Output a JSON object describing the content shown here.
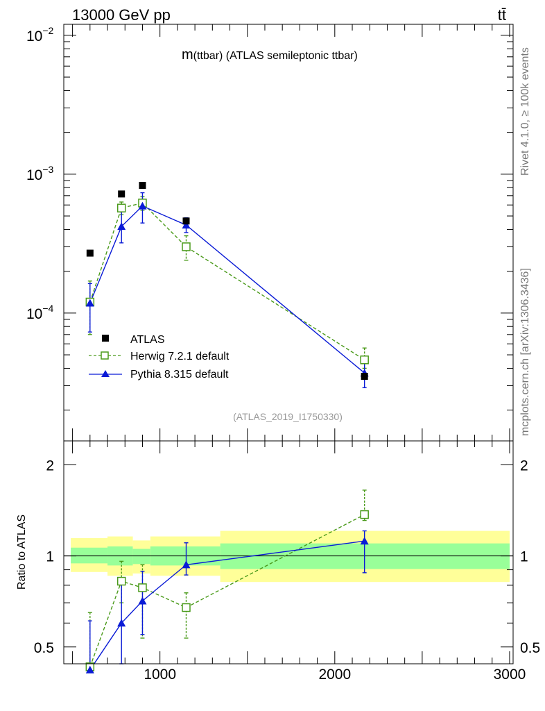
{
  "header": {
    "energy_label": "13000 GeV pp",
    "process_label": "tt̄"
  },
  "side_labels": {
    "rivet": "Rivet 4.1.0, ≥ 100k events",
    "mcplots": "mcplots.cern.ch [arXiv:1306.3436]"
  },
  "chart_data": {
    "type": "scatter",
    "title_main": "m",
    "title_rest": "(ttbar) (ATLAS semileptonic ttbar)",
    "reference": "(ATLAS_2019_I1750330)",
    "ratio_ylabel": "Ratio to ATLAS",
    "xlim": [
      450,
      3020
    ],
    "upper_ylim": [
      1.2e-05,
      0.012
    ],
    "ratio_ylim": [
      0.44,
      2.4
    ],
    "upper_ytick_labels": [
      {
        "value": 0.0001,
        "base": "10",
        "exp": "−4"
      },
      {
        "value": 0.001,
        "base": "10",
        "exp": "−3"
      },
      {
        "value": 0.01,
        "base": "10",
        "exp": "−2"
      }
    ],
    "x_ticks": [
      {
        "value": 1000,
        "label": "1000"
      },
      {
        "value": 2000,
        "label": "2000"
      },
      {
        "value": 3000,
        "label": "3000"
      }
    ],
    "ratio_ytick_labels": [
      {
        "value": 0.5,
        "label": "0.5"
      },
      {
        "value": 1,
        "label": "1"
      },
      {
        "value": 2,
        "label": "2"
      }
    ],
    "bins": [
      {
        "lo": 490,
        "hi": 700,
        "yellow": [
          0.885,
          1.145
        ],
        "green": [
          0.945,
          1.065
        ]
      },
      {
        "lo": 700,
        "hi": 845,
        "yellow": [
          0.86,
          1.16
        ],
        "green": [
          0.93,
          1.075
        ]
      },
      {
        "lo": 845,
        "hi": 945,
        "yellow": [
          0.875,
          1.125
        ],
        "green": [
          0.94,
          1.055
        ]
      },
      {
        "lo": 945,
        "hi": 1345,
        "yellow": [
          0.86,
          1.16
        ],
        "green": [
          0.93,
          1.075
        ]
      },
      {
        "lo": 1345,
        "hi": 3000,
        "yellow": [
          0.82,
          1.21
        ],
        "green": [
          0.905,
          1.1
        ]
      }
    ],
    "series": [
      {
        "name": "ATLAS",
        "legend": "ATLAS",
        "color": "#000000",
        "marker": "square-filled",
        "x": [
          600,
          780,
          900,
          1150,
          2170
        ],
        "y": [
          0.00027,
          0.00072,
          0.00083,
          0.00046,
          3.5e-05
        ]
      },
      {
        "name": "Herwig",
        "legend": "Herwig 7.2.1 default",
        "color": "#4a9a1a",
        "marker": "square-open",
        "dashed": true,
        "x": [
          600,
          780,
          900,
          1150,
          2170
        ],
        "y": [
          0.00012,
          0.00057,
          0.00062,
          0.0003,
          4.6e-05
        ],
        "yerr_lo": [
          5e-05,
          6e-05,
          7e-05,
          6e-05,
          6e-06
        ],
        "yerr_hi": [
          5e-05,
          6e-05,
          7e-05,
          6e-05,
          1e-05
        ],
        "ratio": [
          0.43,
          0.825,
          0.785,
          0.675,
          1.37
        ],
        "ratio_err_lo": [
          0.22,
          0.125,
          0.25,
          0.14,
          0.06
        ],
        "ratio_err_hi": [
          0.22,
          0.135,
          0.15,
          0.08,
          0.28
        ]
      },
      {
        "name": "Pythia",
        "legend": "Pythia 8.315 default",
        "color": "#0a1bd6",
        "marker": "triangle-filled",
        "dashed": false,
        "x": [
          600,
          780,
          900,
          1150,
          2170
        ],
        "y": [
          0.000118,
          0.00042,
          0.00059,
          0.00043,
          3.7e-05
        ],
        "yerr_lo": [
          4.5e-05,
          0.0001,
          0.000145,
          5e-05,
          8e-06
        ],
        "yerr_hi": [
          4.5e-05,
          0.000115,
          0.000145,
          5.5e-05,
          9e-06
        ],
        "ratio": [
          0.42,
          0.6,
          0.71,
          0.935,
          1.12
        ],
        "ratio_err_lo": [
          0.22,
          0.18,
          0.16,
          0.07,
          0.24
        ],
        "ratio_err_hi": [
          0.19,
          0.21,
          0.18,
          0.17,
          0.09
        ]
      }
    ]
  }
}
